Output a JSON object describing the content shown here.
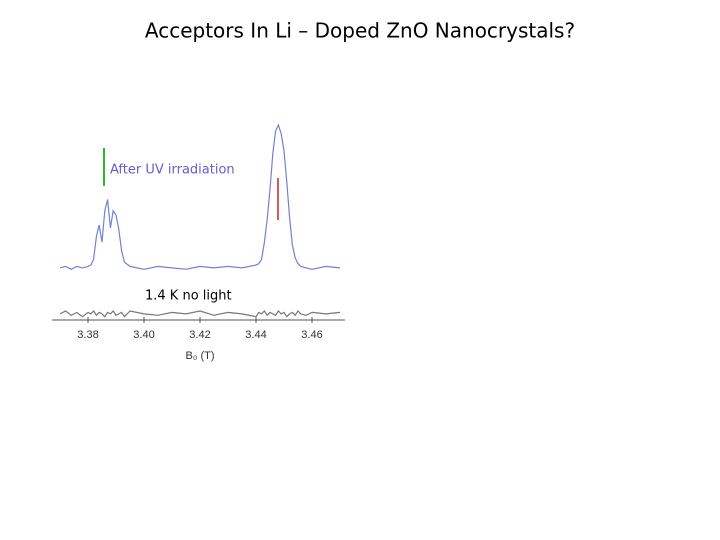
{
  "chart_data": {
    "type": "line",
    "title": "Acceptors In Li – Doped ZnO Nanocrystals?",
    "x_label": "B₀ (T)",
    "x": [
      3.37,
      3.372,
      3.374,
      3.376,
      3.378,
      3.38,
      3.381,
      3.382,
      3.383,
      3.384,
      3.385,
      3.386,
      3.387,
      3.388,
      3.389,
      3.39,
      3.391,
      3.392,
      3.393,
      3.395,
      3.4,
      3.405,
      3.41,
      3.415,
      3.42,
      3.425,
      3.43,
      3.435,
      3.44,
      3.441,
      3.442,
      3.443,
      3.444,
      3.445,
      3.446,
      3.447,
      3.448,
      3.449,
      3.45,
      3.451,
      3.452,
      3.453,
      3.454,
      3.455,
      3.456,
      3.458,
      3.46,
      3.465,
      3.47
    ],
    "series": [
      {
        "name": "After UV irradiation",
        "color": "#7080d8",
        "values": [
          0,
          1,
          -1,
          1,
          0,
          1,
          2,
          6,
          22,
          30,
          18,
          40,
          48,
          28,
          40,
          37,
          27,
          12,
          4,
          1,
          -1,
          1,
          0,
          -1,
          1,
          0,
          1,
          0,
          2,
          3,
          6,
          18,
          34,
          55,
          80,
          96,
          100,
          94,
          82,
          60,
          35,
          16,
          7,
          3,
          1,
          0,
          -1,
          1,
          0
        ]
      },
      {
        "name": "1.4 K no light",
        "color": "#777777",
        "values": [
          0,
          2,
          -1,
          1,
          -2,
          1,
          0,
          2,
          -1,
          1,
          0,
          -2,
          1,
          0,
          2,
          -1,
          0,
          1,
          -2,
          2,
          0,
          -1,
          1,
          0,
          2,
          -1,
          1,
          0,
          -2,
          1,
          0,
          2,
          -1,
          1,
          0,
          -1,
          2,
          0,
          1,
          -2,
          0,
          1,
          -1,
          2,
          0,
          -1,
          1,
          0,
          1
        ]
      }
    ],
    "xlim": [
      3.37,
      3.47
    ],
    "xticks": [
      3.38,
      {
        "value": 3.4,
        "label": "3.40"
      },
      3.42,
      3.44,
      3.46
    ],
    "ylim": [
      -5,
      105
    ]
  }
}
